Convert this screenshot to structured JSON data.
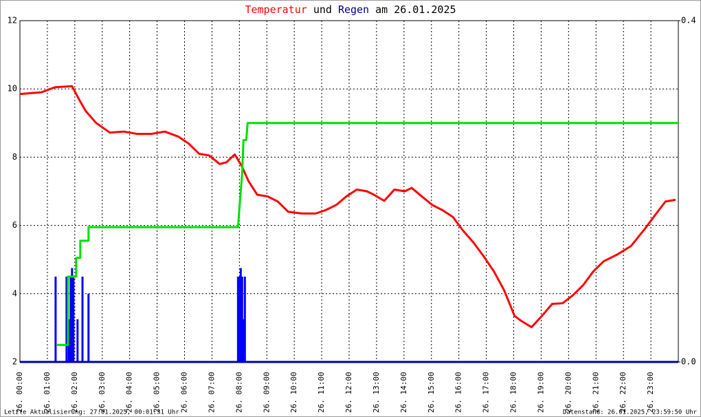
{
  "chart_data": {
    "type": "line",
    "title_joiner": "und",
    "title_date": "am 26.01.2025",
    "footer_left": "Letzte Aktualisierung: 27.01.2025, 00:01:31 Uhr",
    "footer_right": "Datenstand: 26.01.2025, 23:59:50 Uhr",
    "xlim": [
      0,
      24
    ],
    "xticks": [
      {
        "value": 0,
        "label": "26. 00:00"
      },
      {
        "value": 1,
        "label": "26. 01:00"
      },
      {
        "value": 2,
        "label": "26. 02:00"
      },
      {
        "value": 3,
        "label": "26. 03:00"
      },
      {
        "value": 4,
        "label": "26. 04:00"
      },
      {
        "value": 5,
        "label": "26. 05:00"
      },
      {
        "value": 6,
        "label": "26. 06:00"
      },
      {
        "value": 7,
        "label": "26. 07:00"
      },
      {
        "value": 8,
        "label": "26. 08:00"
      },
      {
        "value": 9,
        "label": "26. 09:00"
      },
      {
        "value": 10,
        "label": "26. 10:00"
      },
      {
        "value": 11,
        "label": "26. 11:00"
      },
      {
        "value": 12,
        "label": "26. 12:00"
      },
      {
        "value": 13,
        "label": "26. 13:00"
      },
      {
        "value": 14,
        "label": "26. 14:00"
      },
      {
        "value": 15,
        "label": "26. 15:00"
      },
      {
        "value": 16,
        "label": "26. 16:00"
      },
      {
        "value": 17,
        "label": "26. 17:00"
      },
      {
        "value": 18,
        "label": "26. 18:00"
      },
      {
        "value": 19,
        "label": "26. 19:00"
      },
      {
        "value": 20,
        "label": "26. 20:00"
      },
      {
        "value": 21,
        "label": "26. 21:00"
      },
      {
        "value": 22,
        "label": "26. 22:00"
      },
      {
        "value": 23,
        "label": "26. 23:00"
      }
    ],
    "ylim": [
      2,
      12
    ],
    "yticks": [
      2,
      4,
      6,
      8,
      10,
      12
    ],
    "y2lim": [
      0,
      0.4
    ],
    "y2ticks": [
      {
        "value": 0,
        "label": "0.0"
      },
      {
        "value": 0.4,
        "label": "0.4"
      }
    ],
    "grid": true,
    "series": [
      {
        "name": "Temperatur",
        "color": "#ff0000",
        "type": "line",
        "x": [
          0,
          0.78,
          1.28,
          1.9,
          2.15,
          2.4,
          2.78,
          3.28,
          3.78,
          4.28,
          4.78,
          5.28,
          5.78,
          6.15,
          6.53,
          6.9,
          7.28,
          7.53,
          7.83,
          8.08,
          8.33,
          8.65,
          9.03,
          9.4,
          9.78,
          10.28,
          10.78,
          11.15,
          11.53,
          11.9,
          12.28,
          12.65,
          12.9,
          13.28,
          13.65,
          14.03,
          14.28,
          14.65,
          15.03,
          15.4,
          15.78,
          16.15,
          16.53,
          16.9,
          17.28,
          17.65,
          18.03,
          18.28,
          18.65,
          19.03,
          19.4,
          19.78,
          20.15,
          20.53,
          20.9,
          21.28,
          21.78,
          22.28,
          22.78,
          23.15,
          23.53,
          23.9
        ],
        "values": [
          9.85,
          9.9,
          10.05,
          10.08,
          9.7,
          9.35,
          9.0,
          8.72,
          8.75,
          8.68,
          8.68,
          8.75,
          8.6,
          8.4,
          8.1,
          8.05,
          7.8,
          7.85,
          8.08,
          7.75,
          7.3,
          6.9,
          6.85,
          6.7,
          6.4,
          6.35,
          6.35,
          6.45,
          6.6,
          6.85,
          7.05,
          7.0,
          6.9,
          6.72,
          7.05,
          7.0,
          7.1,
          6.85,
          6.6,
          6.45,
          6.25,
          5.85,
          5.5,
          5.1,
          4.65,
          4.1,
          3.35,
          3.2,
          3.02,
          3.35,
          3.7,
          3.72,
          3.95,
          4.25,
          4.65,
          4.95,
          5.15,
          5.4,
          5.9,
          6.3,
          6.7,
          6.75
        ]
      },
      {
        "name": "Regen",
        "color": "#0000ff",
        "type": "bar",
        "axis": "y2",
        "x": [
          1.3,
          1.7,
          1.78,
          1.85,
          1.9,
          1.95,
          2.1,
          2.28,
          2.5,
          7.95,
          8.0,
          8.05,
          8.1,
          8.15,
          8.2
        ],
        "values": [
          0.1,
          0.1,
          0.05,
          0.1,
          0.11,
          0.1,
          0.05,
          0.1,
          0.08,
          0.1,
          0.1,
          0.11,
          0.1,
          0.05,
          0.1
        ]
      },
      {
        "color": "#00e000",
        "type": "line",
        "axis": "y2",
        "x": [
          1.35,
          1.75,
          1.75,
          2.05,
          2.05,
          2.2,
          2.2,
          2.5,
          2.5,
          7.95,
          8.0,
          8.1,
          8.15,
          8.25,
          8.3,
          24
        ],
        "values": [
          0.02,
          0.02,
          0.1,
          0.1,
          0.122,
          0.122,
          0.142,
          0.142,
          0.158,
          0.158,
          0.18,
          0.22,
          0.26,
          0.26,
          0.28,
          0.28
        ]
      }
    ]
  }
}
